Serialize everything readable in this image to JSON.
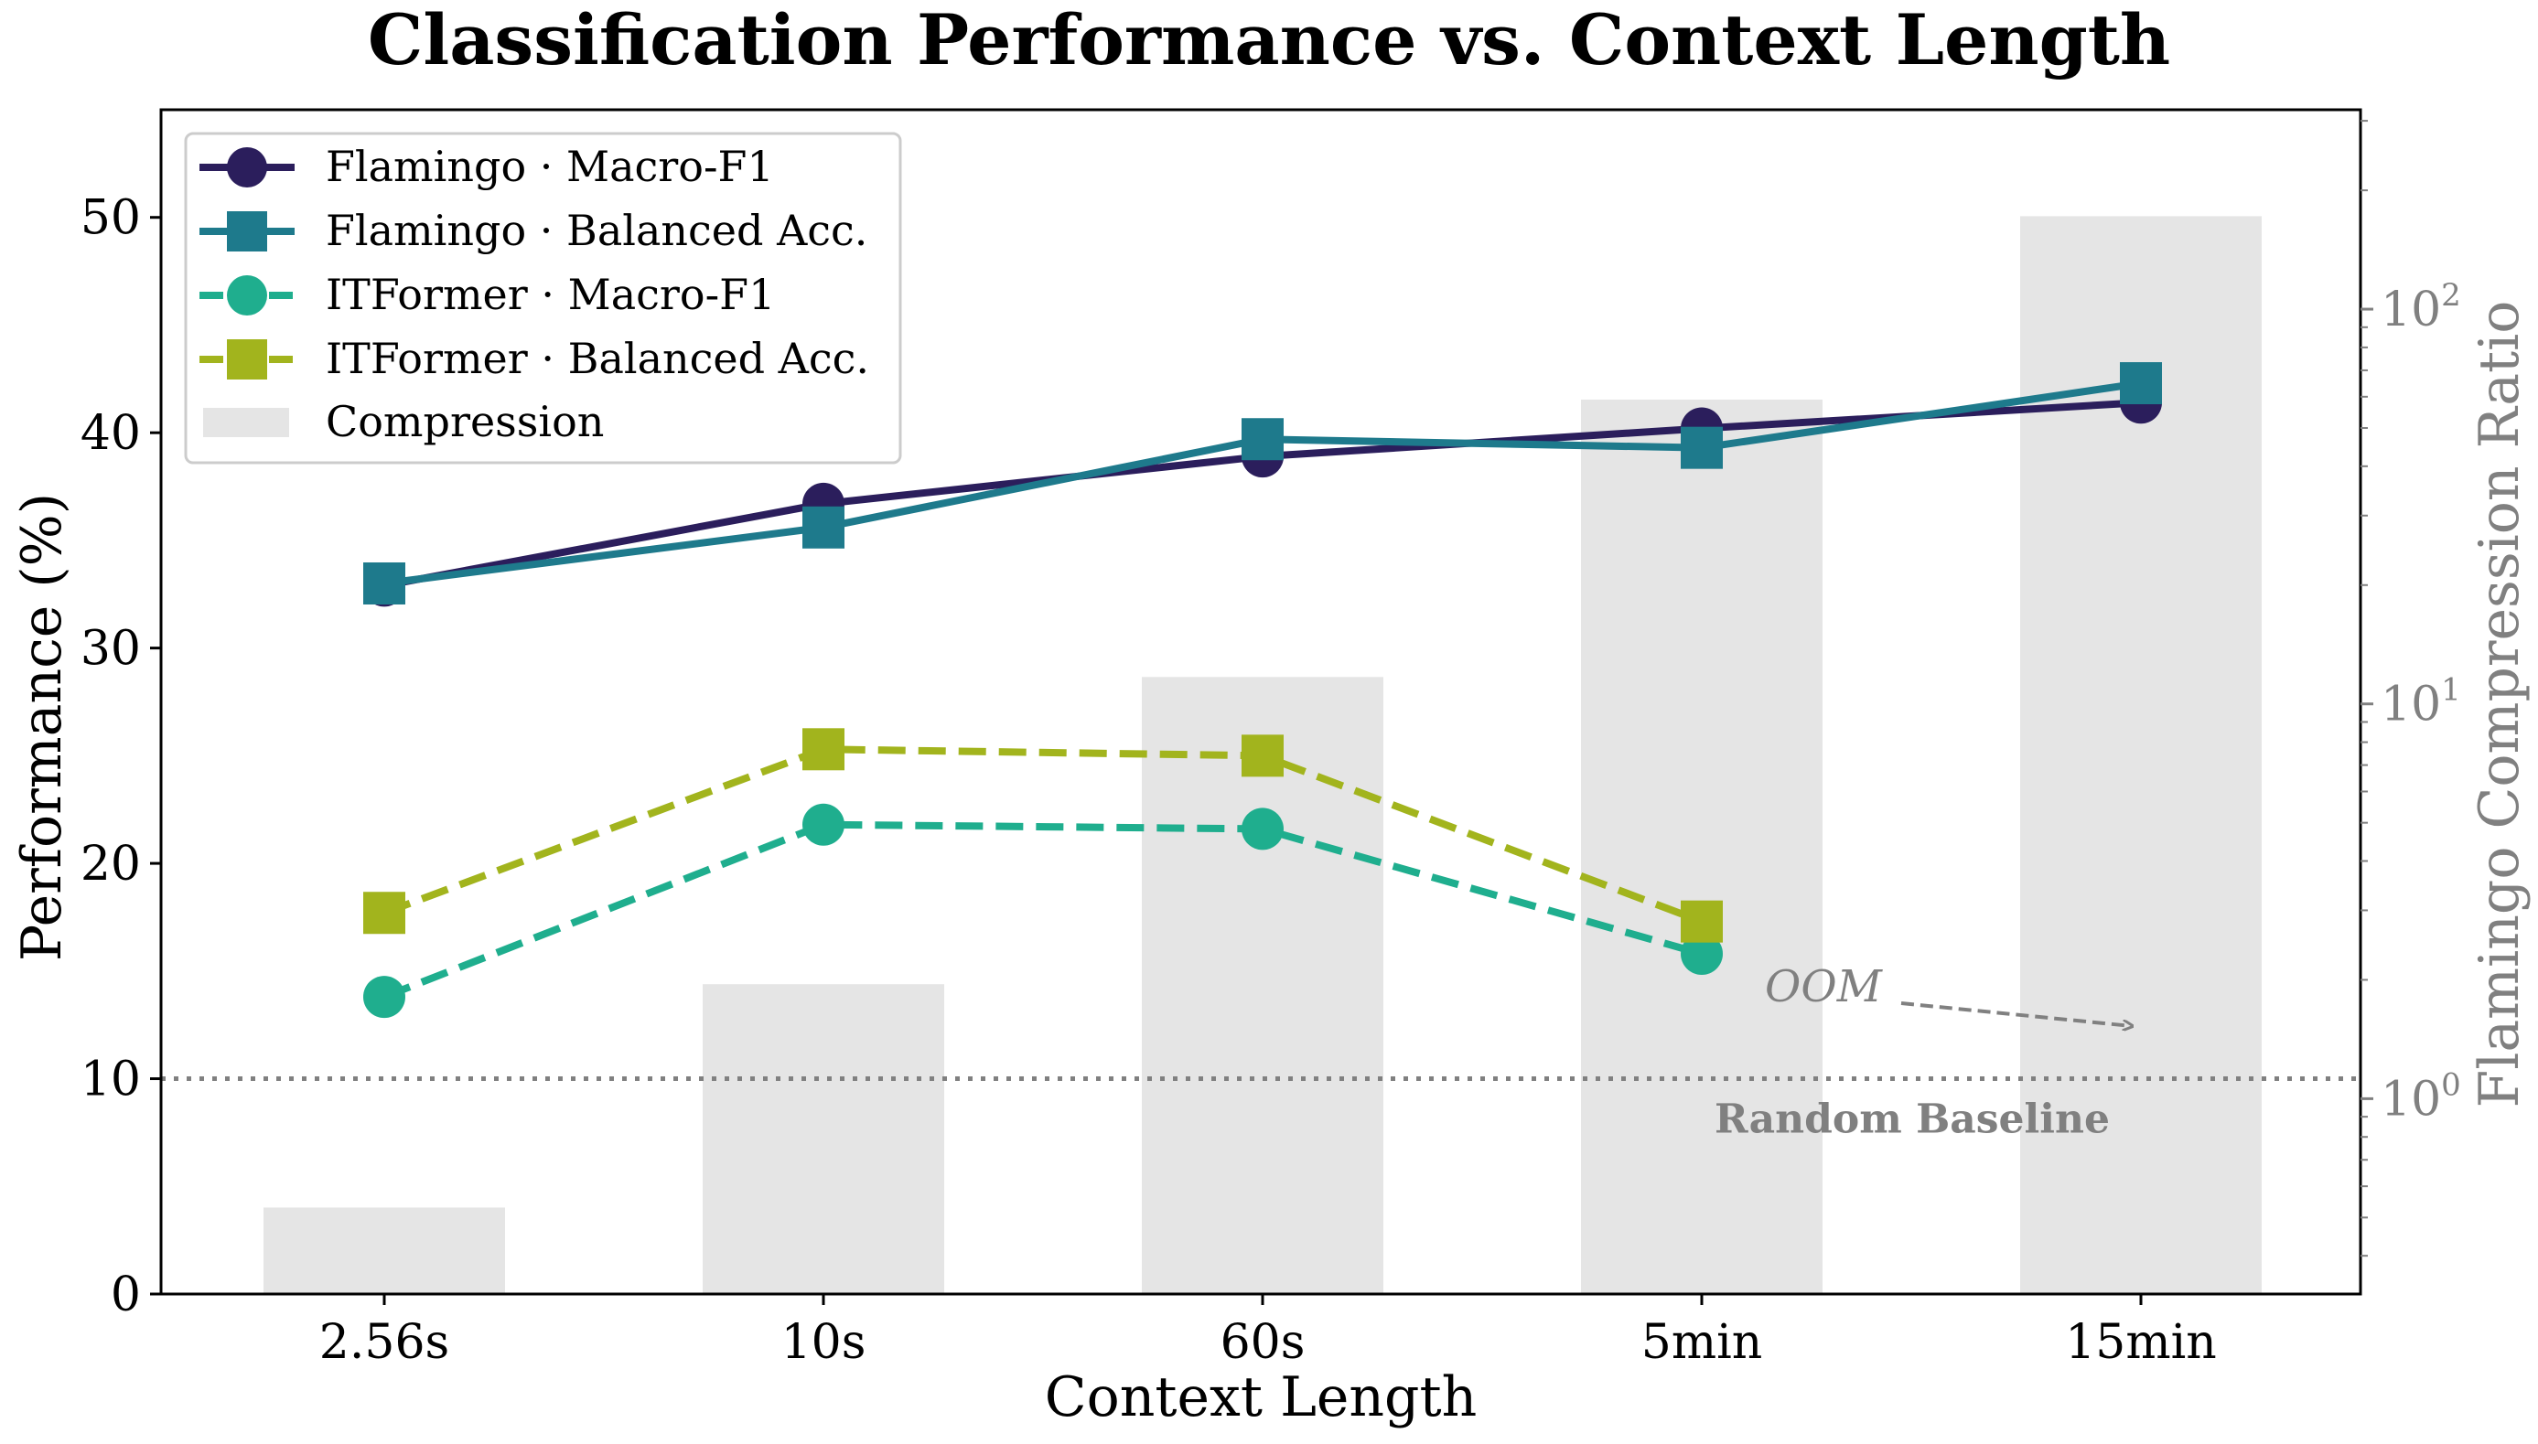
{
  "chart_data": {
    "type": "line",
    "title": "Classification Performance vs. Context Length",
    "xlabel": "Context Length",
    "ylabel": "Performance (%)",
    "y2label": "Flamingo Compression Ratio",
    "categories": [
      "2.56s",
      "10s",
      "60s",
      "5min",
      "15min"
    ],
    "ylim": [
      0,
      55
    ],
    "yticks": [
      0,
      10,
      20,
      30,
      40,
      50
    ],
    "y2scale": "log",
    "y2lim": [
      0.32,
      320
    ],
    "y2ticks": [
      {
        "value": 1,
        "base": "10",
        "exp": "0"
      },
      {
        "value": 10,
        "base": "10",
        "exp": "1"
      },
      {
        "value": 100,
        "base": "10",
        "exp": "2"
      }
    ],
    "y2minor": [
      0.4,
      0.5,
      0.6,
      0.7,
      0.8,
      0.9,
      2,
      3,
      4,
      5,
      6,
      7,
      8,
      9,
      20,
      30,
      40,
      50,
      60,
      70,
      80,
      90,
      200,
      300
    ],
    "series": [
      {
        "name": "Flamingo · Macro-F1",
        "color": "#2b1e5c",
        "marker": "circle",
        "dash": false,
        "values": [
          32.9,
          36.7,
          38.9,
          40.2,
          41.4
        ]
      },
      {
        "name": "Flamingo · Balanced Acc.",
        "color": "#1e7a8c",
        "marker": "square",
        "dash": false,
        "values": [
          33.0,
          35.6,
          39.7,
          39.3,
          42.3
        ]
      },
      {
        "name": "ITFormer · Macro-F1",
        "color": "#1fae8e",
        "marker": "circle",
        "dash": true,
        "values": [
          13.8,
          21.8,
          21.6,
          15.8,
          null
        ]
      },
      {
        "name": "ITFormer · Balanced Acc.",
        "color": "#a2b41d",
        "marker": "square",
        "dash": true,
        "values": [
          17.7,
          25.3,
          25.0,
          17.3,
          null
        ]
      }
    ],
    "compression": {
      "name": "Compression",
      "color": "#e5e5e5",
      "values": [
        0.53,
        1.95,
        11.7,
        59,
        172
      ]
    },
    "baseline": {
      "value": 10,
      "label": "Random Baseline",
      "color": "#808080"
    },
    "annotation": {
      "text": "OOM",
      "color": "#808080"
    },
    "legend_position": "upper-left"
  }
}
